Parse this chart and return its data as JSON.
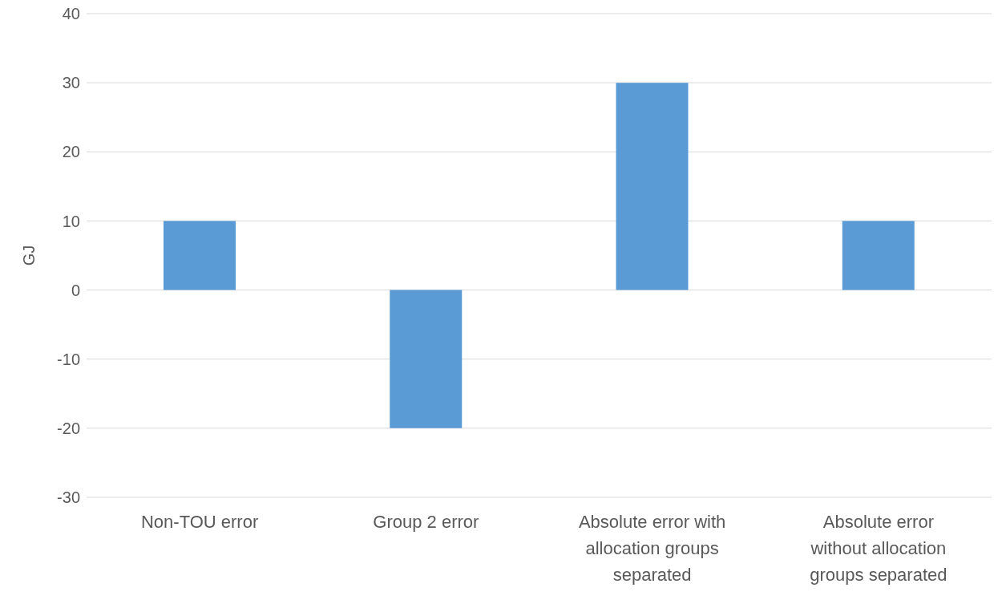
{
  "chart_data": {
    "type": "bar",
    "ylabel": "GJ",
    "categories": [
      "Non-TOU error",
      "Group 2 error",
      "Absolute error with allocation groups separated",
      "Absolute error without allocation groups separated"
    ],
    "values": [
      10,
      -20,
      30,
      10
    ],
    "color": "#5b9bd5",
    "ylim": [
      -30,
      40
    ],
    "yticks": [
      -30,
      -20,
      -10,
      0,
      10,
      20,
      30,
      40
    ],
    "grid": "y",
    "legend": false
  }
}
